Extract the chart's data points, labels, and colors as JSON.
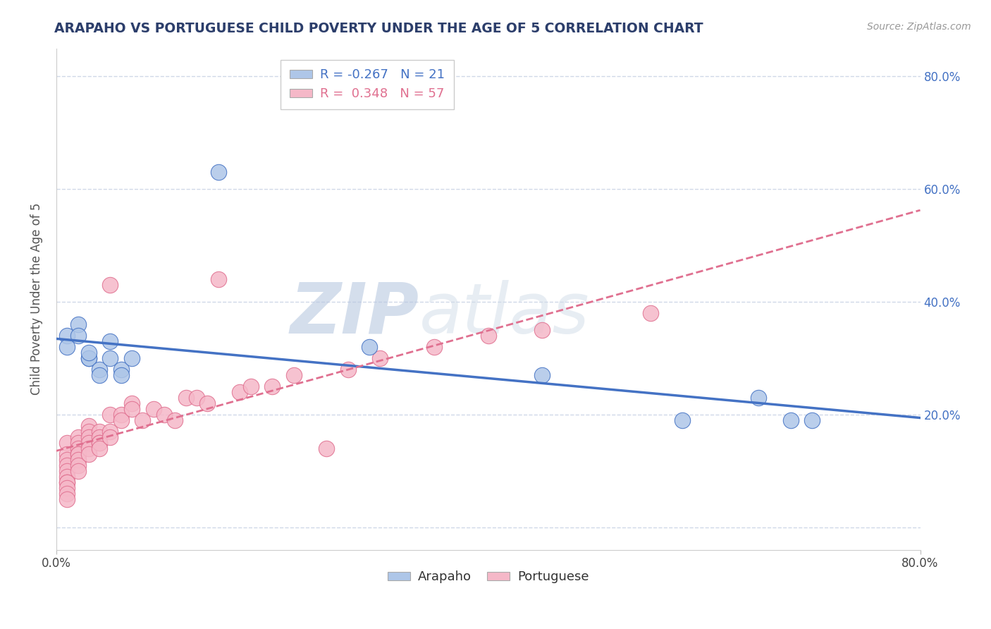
{
  "title": "ARAPAHO VS PORTUGUESE CHILD POVERTY UNDER THE AGE OF 5 CORRELATION CHART",
  "source": "Source: ZipAtlas.com",
  "ylabel": "Child Poverty Under the Age of 5",
  "xlim": [
    0.0,
    0.8
  ],
  "ylim": [
    -0.04,
    0.85
  ],
  "yticks": [
    0.0,
    0.2,
    0.4,
    0.6,
    0.8
  ],
  "ytick_labels": [
    "",
    "20.0%",
    "40.0%",
    "60.0%",
    "80.0%"
  ],
  "arapaho_R": -0.267,
  "arapaho_N": 21,
  "portuguese_R": 0.348,
  "portuguese_N": 57,
  "arapaho_color": "#aec6e8",
  "portuguese_color": "#f5b8c8",
  "arapaho_line_color": "#4472c4",
  "portuguese_line_color": "#e07090",
  "background_color": "#ffffff",
  "grid_color": "#d0d8e8",
  "watermark_color": "#c8d4e8",
  "arapaho_x": [
    0.01,
    0.01,
    0.02,
    0.02,
    0.03,
    0.03,
    0.03,
    0.04,
    0.04,
    0.05,
    0.05,
    0.06,
    0.06,
    0.07,
    0.15,
    0.29,
    0.45,
    0.58,
    0.65,
    0.68,
    0.7
  ],
  "arapaho_y": [
    0.34,
    0.32,
    0.36,
    0.34,
    0.3,
    0.3,
    0.31,
    0.28,
    0.27,
    0.33,
    0.3,
    0.28,
    0.27,
    0.3,
    0.63,
    0.32,
    0.27,
    0.19,
    0.23,
    0.19,
    0.19
  ],
  "portuguese_x": [
    0.01,
    0.01,
    0.01,
    0.01,
    0.01,
    0.01,
    0.01,
    0.01,
    0.01,
    0.01,
    0.01,
    0.02,
    0.02,
    0.02,
    0.02,
    0.02,
    0.02,
    0.02,
    0.02,
    0.03,
    0.03,
    0.03,
    0.03,
    0.03,
    0.03,
    0.04,
    0.04,
    0.04,
    0.04,
    0.04,
    0.05,
    0.05,
    0.05,
    0.05,
    0.06,
    0.06,
    0.07,
    0.07,
    0.08,
    0.09,
    0.1,
    0.11,
    0.12,
    0.13,
    0.14,
    0.15,
    0.17,
    0.18,
    0.2,
    0.22,
    0.25,
    0.27,
    0.3,
    0.35,
    0.4,
    0.45,
    0.55
  ],
  "portuguese_y": [
    0.15,
    0.13,
    0.12,
    0.11,
    0.1,
    0.09,
    0.08,
    0.08,
    0.07,
    0.06,
    0.05,
    0.16,
    0.15,
    0.14,
    0.13,
    0.13,
    0.12,
    0.11,
    0.1,
    0.18,
    0.17,
    0.16,
    0.15,
    0.14,
    0.13,
    0.17,
    0.16,
    0.15,
    0.15,
    0.14,
    0.43,
    0.2,
    0.17,
    0.16,
    0.2,
    0.19,
    0.22,
    0.21,
    0.19,
    0.21,
    0.2,
    0.19,
    0.23,
    0.23,
    0.22,
    0.44,
    0.24,
    0.25,
    0.25,
    0.27,
    0.14,
    0.28,
    0.3,
    0.32,
    0.34,
    0.35,
    0.38
  ]
}
